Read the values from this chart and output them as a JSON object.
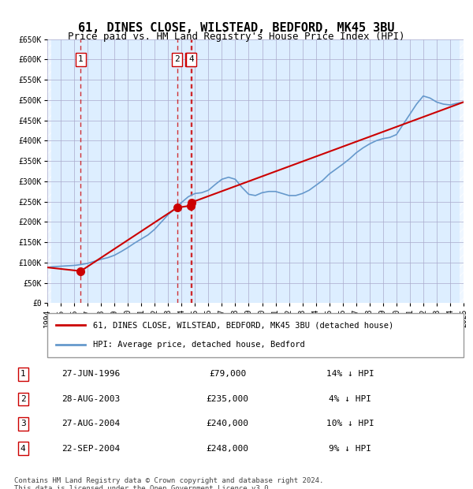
{
  "title": "61, DINES CLOSE, WILSTEAD, BEDFORD, MK45 3BU",
  "subtitle": "Price paid vs. HM Land Registry's House Price Index (HPI)",
  "footer": "Contains HM Land Registry data © Crown copyright and database right 2024.\nThis data is licensed under the Open Government Licence v3.0.",
  "legend_line1": "61, DINES CLOSE, WILSTEAD, BEDFORD, MK45 3BU (detached house)",
  "legend_line2": "HPI: Average price, detached house, Bedford",
  "sales": [
    {
      "num": 1,
      "date": "27-JUN-1996",
      "price": 79000,
      "pct": "14%",
      "year_x": 1996.49
    },
    {
      "num": 2,
      "date": "28-AUG-2003",
      "price": 235000,
      "pct": "4%",
      "year_x": 2003.66
    },
    {
      "num": 3,
      "date": "27-AUG-2004",
      "price": 240000,
      "pct": "10%",
      "year_x": 2004.66
    },
    {
      "num": 4,
      "date": "22-SEP-2004",
      "price": 248000,
      "pct": "9%",
      "year_x": 2004.73
    }
  ],
  "hpi_x": [
    1994,
    1994.5,
    1995,
    1995.5,
    1996,
    1996.5,
    1997,
    1997.5,
    1998,
    1998.5,
    1999,
    1999.5,
    2000,
    2000.5,
    2001,
    2001.5,
    2002,
    2002.5,
    2003,
    2003.5,
    2004,
    2004.5,
    2005,
    2005.5,
    2006,
    2006.5,
    2007,
    2007.5,
    2008,
    2008.5,
    2009,
    2009.5,
    2010,
    2010.5,
    2011,
    2011.5,
    2012,
    2012.5,
    2013,
    2013.5,
    2014,
    2014.5,
    2015,
    2015.5,
    2016,
    2016.5,
    2017,
    2017.5,
    2018,
    2018.5,
    2019,
    2019.5,
    2020,
    2020.5,
    2021,
    2021.5,
    2022,
    2022.5,
    2023,
    2023.5,
    2024,
    2024.5,
    2025
  ],
  "hpi_y": [
    88000,
    90000,
    91000,
    92000,
    93000,
    95000,
    98000,
    103000,
    108000,
    112000,
    118000,
    127000,
    137000,
    148000,
    158000,
    168000,
    182000,
    200000,
    218000,
    232000,
    248000,
    262000,
    270000,
    272000,
    278000,
    292000,
    305000,
    310000,
    305000,
    285000,
    268000,
    265000,
    272000,
    275000,
    275000,
    270000,
    265000,
    265000,
    270000,
    278000,
    290000,
    302000,
    318000,
    330000,
    342000,
    355000,
    370000,
    382000,
    392000,
    400000,
    405000,
    408000,
    415000,
    440000,
    465000,
    490000,
    510000,
    505000,
    495000,
    490000,
    488000,
    492000,
    495000
  ],
  "price_x": [
    1994,
    1996.49,
    2003.66,
    2004.66,
    2004.73,
    2025
  ],
  "price_y": [
    88000,
    79000,
    235000,
    240000,
    248000,
    495000
  ],
  "xlim": [
    1994,
    2025
  ],
  "ylim": [
    0,
    650000
  ],
  "yticks": [
    0,
    50000,
    100000,
    150000,
    200000,
    250000,
    300000,
    350000,
    400000,
    450000,
    500000,
    550000,
    600000,
    650000
  ],
  "xticks": [
    1994,
    1995,
    1996,
    1997,
    1998,
    1999,
    2000,
    2001,
    2002,
    2003,
    2004,
    2005,
    2006,
    2007,
    2008,
    2009,
    2010,
    2011,
    2012,
    2013,
    2014,
    2015,
    2016,
    2017,
    2018,
    2019,
    2020,
    2021,
    2022,
    2023,
    2024,
    2025
  ],
  "hpi_color": "#6699cc",
  "price_color": "#cc0000",
  "sale_marker_color": "#cc0000",
  "vline_color": "#cc0000",
  "bg_color": "#ddeeff",
  "hatch_color": "#bbccdd",
  "grid_color": "#aaaacc",
  "box_bg": "#ffffff",
  "title_fontsize": 11,
  "subtitle_fontsize": 9
}
